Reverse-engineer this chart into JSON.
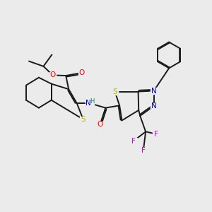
{
  "bg_color": "#ebebeb",
  "line_color": "#1a1a1a",
  "bond_width": 1.4,
  "atom_colors": {
    "S": "#b8b800",
    "O": "#ff0000",
    "N": "#0000cc",
    "H": "#008888",
    "F": "#dd00dd",
    "C": "#1a1a1a"
  },
  "figsize": [
    3.0,
    3.0
  ],
  "dpi": 100
}
